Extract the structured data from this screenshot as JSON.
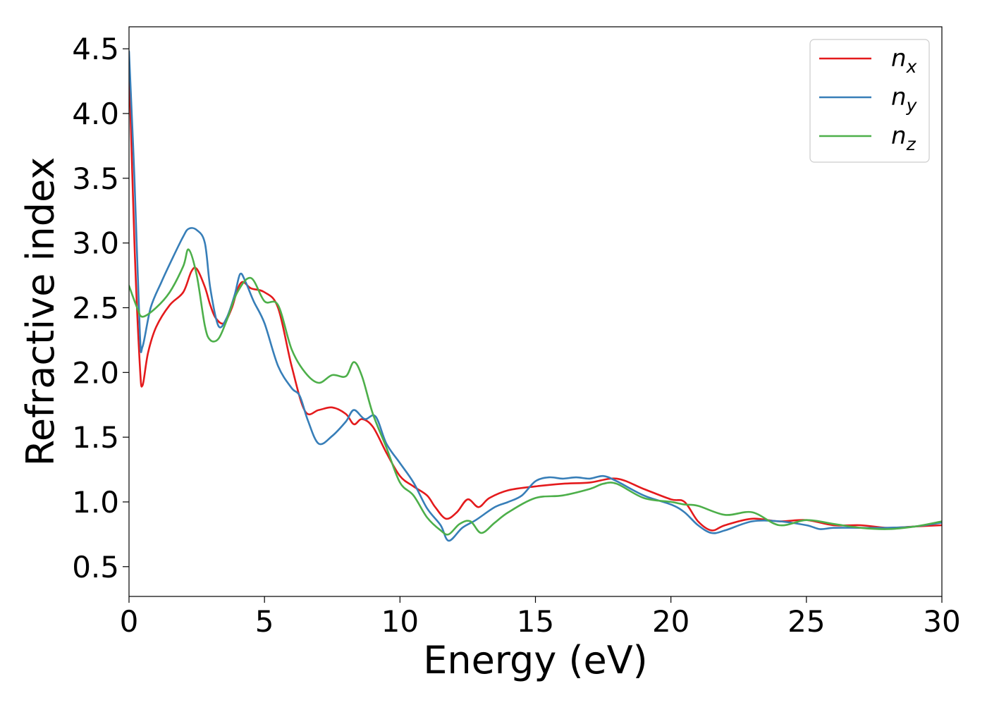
{
  "chart_data": {
    "type": "line",
    "title": "",
    "xlabel": "Energy (eV)",
    "ylabel": "Refractive index",
    "xlim": [
      0,
      30
    ],
    "ylim": [
      0.27,
      4.67
    ],
    "xticks": [
      0,
      5,
      10,
      15,
      20,
      25,
      30
    ],
    "xtick_labels": [
      "0",
      "5",
      "10",
      "15",
      "20",
      "25",
      "30"
    ],
    "yticks": [
      0.5,
      1.0,
      1.5,
      2.0,
      2.5,
      3.0,
      3.5,
      4.0,
      4.5
    ],
    "ytick_labels": [
      "0.5",
      "1.0",
      "1.5",
      "2.0",
      "2.5",
      "3.0",
      "3.5",
      "4.0",
      "4.5"
    ],
    "grid": false,
    "legend_position": "top-right",
    "series": [
      {
        "name": "n_x",
        "legend_base": "n",
        "legend_sub": "x",
        "color": "#e41a1c",
        "points": [
          [
            0,
            4.4
          ],
          [
            0.2,
            3.0
          ],
          [
            0.4,
            2.05
          ],
          [
            0.5,
            1.9
          ],
          [
            0.7,
            2.15
          ],
          [
            1,
            2.35
          ],
          [
            1.5,
            2.52
          ],
          [
            2,
            2.62
          ],
          [
            2.3,
            2.78
          ],
          [
            2.5,
            2.8
          ],
          [
            2.8,
            2.66
          ],
          [
            3,
            2.52
          ],
          [
            3.2,
            2.42
          ],
          [
            3.5,
            2.38
          ],
          [
            3.8,
            2.5
          ],
          [
            4,
            2.64
          ],
          [
            4.2,
            2.7
          ],
          [
            4.5,
            2.65
          ],
          [
            5,
            2.62
          ],
          [
            5.5,
            2.5
          ],
          [
            6,
            2.05
          ],
          [
            6.5,
            1.7
          ],
          [
            7,
            1.71
          ],
          [
            7.5,
            1.73
          ],
          [
            8,
            1.68
          ],
          [
            8.3,
            1.6
          ],
          [
            8.6,
            1.64
          ],
          [
            9,
            1.58
          ],
          [
            9.5,
            1.38
          ],
          [
            10,
            1.2
          ],
          [
            10.5,
            1.12
          ],
          [
            11,
            1.05
          ],
          [
            11.3,
            0.96
          ],
          [
            11.7,
            0.87
          ],
          [
            12.1,
            0.92
          ],
          [
            12.5,
            1.02
          ],
          [
            12.9,
            0.96
          ],
          [
            13.3,
            1.03
          ],
          [
            14,
            1.09
          ],
          [
            15,
            1.12
          ],
          [
            16,
            1.14
          ],
          [
            17,
            1.15
          ],
          [
            18,
            1.18
          ],
          [
            19,
            1.1
          ],
          [
            20,
            1.02
          ],
          [
            20.5,
            1.0
          ],
          [
            21,
            0.85
          ],
          [
            21.5,
            0.78
          ],
          [
            22,
            0.82
          ],
          [
            23,
            0.87
          ],
          [
            24,
            0.85
          ],
          [
            25,
            0.86
          ],
          [
            26,
            0.82
          ],
          [
            27,
            0.82
          ],
          [
            28,
            0.8
          ],
          [
            29,
            0.81
          ],
          [
            30,
            0.82
          ]
        ]
      },
      {
        "name": "n_y",
        "legend_base": "n",
        "legend_sub": "y",
        "color": "#377eb8",
        "points": [
          [
            0,
            4.48
          ],
          [
            0.2,
            3.5
          ],
          [
            0.4,
            2.3
          ],
          [
            0.5,
            2.2
          ],
          [
            0.8,
            2.5
          ],
          [
            1.2,
            2.7
          ],
          [
            1.6,
            2.88
          ],
          [
            2,
            3.05
          ],
          [
            2.2,
            3.11
          ],
          [
            2.5,
            3.1
          ],
          [
            2.8,
            3.0
          ],
          [
            3,
            2.65
          ],
          [
            3.3,
            2.36
          ],
          [
            3.6,
            2.42
          ],
          [
            3.9,
            2.6
          ],
          [
            4.1,
            2.76
          ],
          [
            4.3,
            2.7
          ],
          [
            4.6,
            2.55
          ],
          [
            5,
            2.38
          ],
          [
            5.5,
            2.05
          ],
          [
            6,
            1.88
          ],
          [
            6.3,
            1.82
          ],
          [
            6.6,
            1.63
          ],
          [
            7,
            1.45
          ],
          [
            7.5,
            1.51
          ],
          [
            8,
            1.62
          ],
          [
            8.3,
            1.71
          ],
          [
            8.7,
            1.64
          ],
          [
            9.1,
            1.66
          ],
          [
            9.5,
            1.45
          ],
          [
            10,
            1.3
          ],
          [
            10.5,
            1.15
          ],
          [
            11,
            0.95
          ],
          [
            11.5,
            0.82
          ],
          [
            11.8,
            0.7
          ],
          [
            12.3,
            0.8
          ],
          [
            12.8,
            0.86
          ],
          [
            13.5,
            0.96
          ],
          [
            14,
            1.0
          ],
          [
            14.5,
            1.05
          ],
          [
            15,
            1.16
          ],
          [
            15.5,
            1.19
          ],
          [
            16,
            1.18
          ],
          [
            16.5,
            1.19
          ],
          [
            17,
            1.18
          ],
          [
            17.5,
            1.2
          ],
          [
            18,
            1.16
          ],
          [
            19,
            1.05
          ],
          [
            20,
            0.98
          ],
          [
            20.5,
            0.92
          ],
          [
            21,
            0.82
          ],
          [
            21.5,
            0.76
          ],
          [
            22,
            0.78
          ],
          [
            23,
            0.85
          ],
          [
            24,
            0.85
          ],
          [
            25,
            0.82
          ],
          [
            25.5,
            0.79
          ],
          [
            26,
            0.8
          ],
          [
            27,
            0.8
          ],
          [
            28,
            0.8
          ],
          [
            29,
            0.81
          ],
          [
            30,
            0.84
          ]
        ]
      },
      {
        "name": "n_z",
        "legend_base": "n",
        "legend_sub": "z",
        "color": "#4daf4a",
        "points": [
          [
            0,
            2.67
          ],
          [
            0.3,
            2.5
          ],
          [
            0.5,
            2.43
          ],
          [
            1,
            2.5
          ],
          [
            1.5,
            2.62
          ],
          [
            2,
            2.82
          ],
          [
            2.2,
            2.95
          ],
          [
            2.5,
            2.75
          ],
          [
            2.8,
            2.36
          ],
          [
            3,
            2.25
          ],
          [
            3.3,
            2.26
          ],
          [
            3.6,
            2.4
          ],
          [
            4,
            2.62
          ],
          [
            4.5,
            2.73
          ],
          [
            5,
            2.55
          ],
          [
            5.5,
            2.52
          ],
          [
            6,
            2.18
          ],
          [
            6.5,
            2.0
          ],
          [
            7,
            1.92
          ],
          [
            7.5,
            1.98
          ],
          [
            8,
            1.97
          ],
          [
            8.3,
            2.08
          ],
          [
            8.6,
            1.97
          ],
          [
            9,
            1.68
          ],
          [
            9.5,
            1.42
          ],
          [
            10,
            1.15
          ],
          [
            10.5,
            1.05
          ],
          [
            11,
            0.88
          ],
          [
            11.5,
            0.78
          ],
          [
            11.8,
            0.75
          ],
          [
            12.2,
            0.83
          ],
          [
            12.6,
            0.85
          ],
          [
            13,
            0.76
          ],
          [
            13.5,
            0.84
          ],
          [
            14,
            0.92
          ],
          [
            15,
            1.03
          ],
          [
            16,
            1.05
          ],
          [
            17,
            1.1
          ],
          [
            17.5,
            1.14
          ],
          [
            18,
            1.14
          ],
          [
            19,
            1.03
          ],
          [
            20,
            1.0
          ],
          [
            20.5,
            0.98
          ],
          [
            21,
            0.97
          ],
          [
            22,
            0.9
          ],
          [
            23,
            0.92
          ],
          [
            24,
            0.82
          ],
          [
            25,
            0.86
          ],
          [
            26,
            0.83
          ],
          [
            27,
            0.8
          ],
          [
            28,
            0.79
          ],
          [
            29,
            0.81
          ],
          [
            30,
            0.85
          ]
        ]
      }
    ]
  }
}
